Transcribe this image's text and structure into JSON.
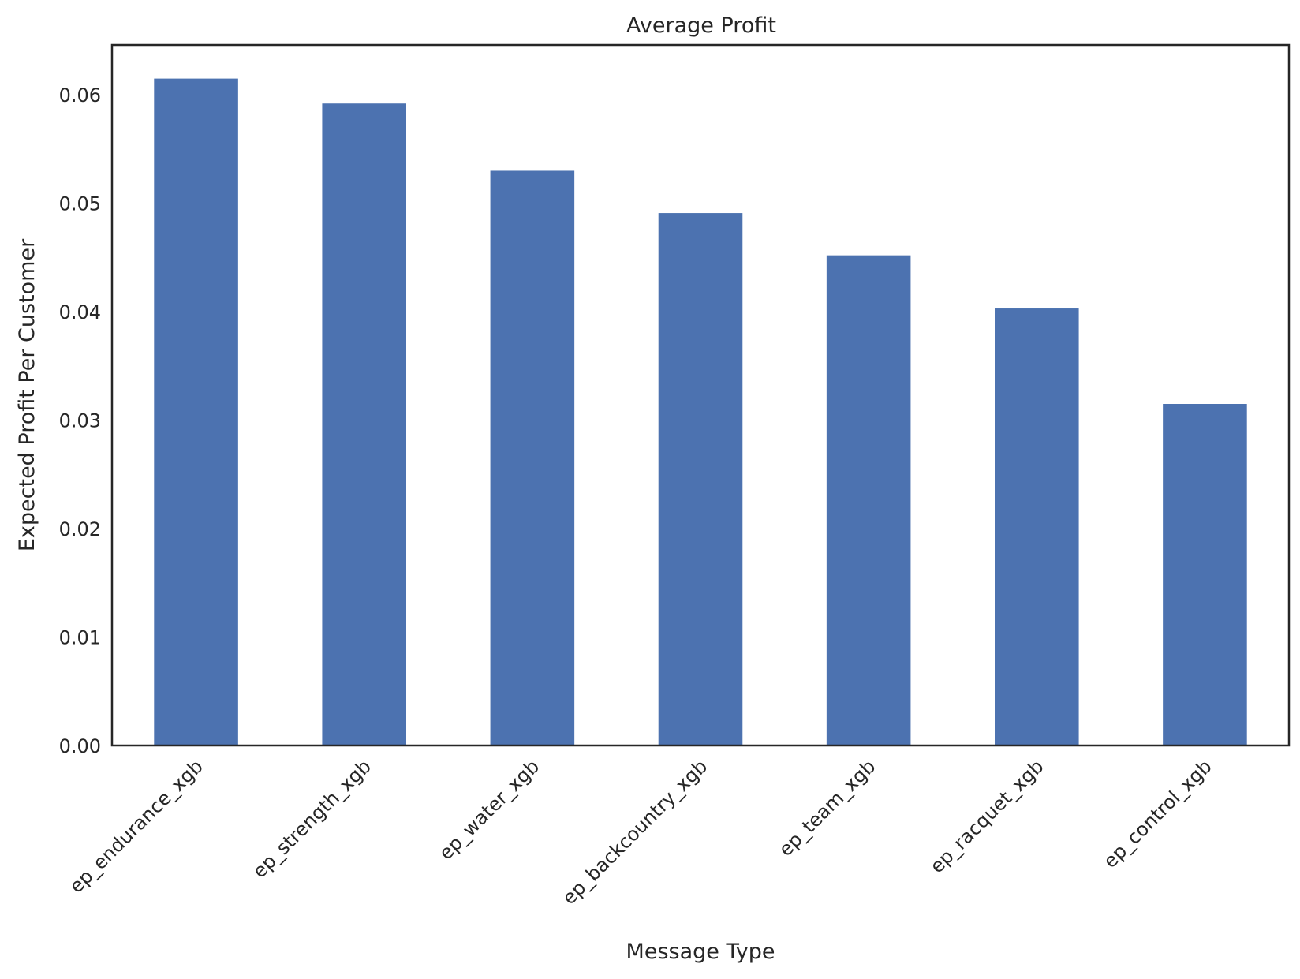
{
  "chart_data": {
    "type": "bar",
    "title": "Average Profit",
    "xlabel": "Message Type",
    "ylabel": "Expected Profit Per Customer",
    "categories": [
      "ep_endurance_xgb",
      "ep_strength_xgb",
      "ep_water_xgb",
      "ep_backcountry_xgb",
      "ep_team_xgb",
      "ep_racquet_xgb",
      "ep_control_xgb"
    ],
    "values": [
      0.0615,
      0.0592,
      0.053,
      0.0491,
      0.0452,
      0.0403,
      0.0315
    ],
    "ylim": [
      0,
      0.0646
    ],
    "yticks": [
      0.0,
      0.01,
      0.02,
      0.03,
      0.04,
      0.05,
      0.06
    ],
    "ytick_labels": [
      "0.00",
      "0.01",
      "0.02",
      "0.03",
      "0.04",
      "0.05",
      "0.06"
    ],
    "grid": false,
    "bar_color": "#4c72b0",
    "x_tick_rotation_deg": 45
  }
}
